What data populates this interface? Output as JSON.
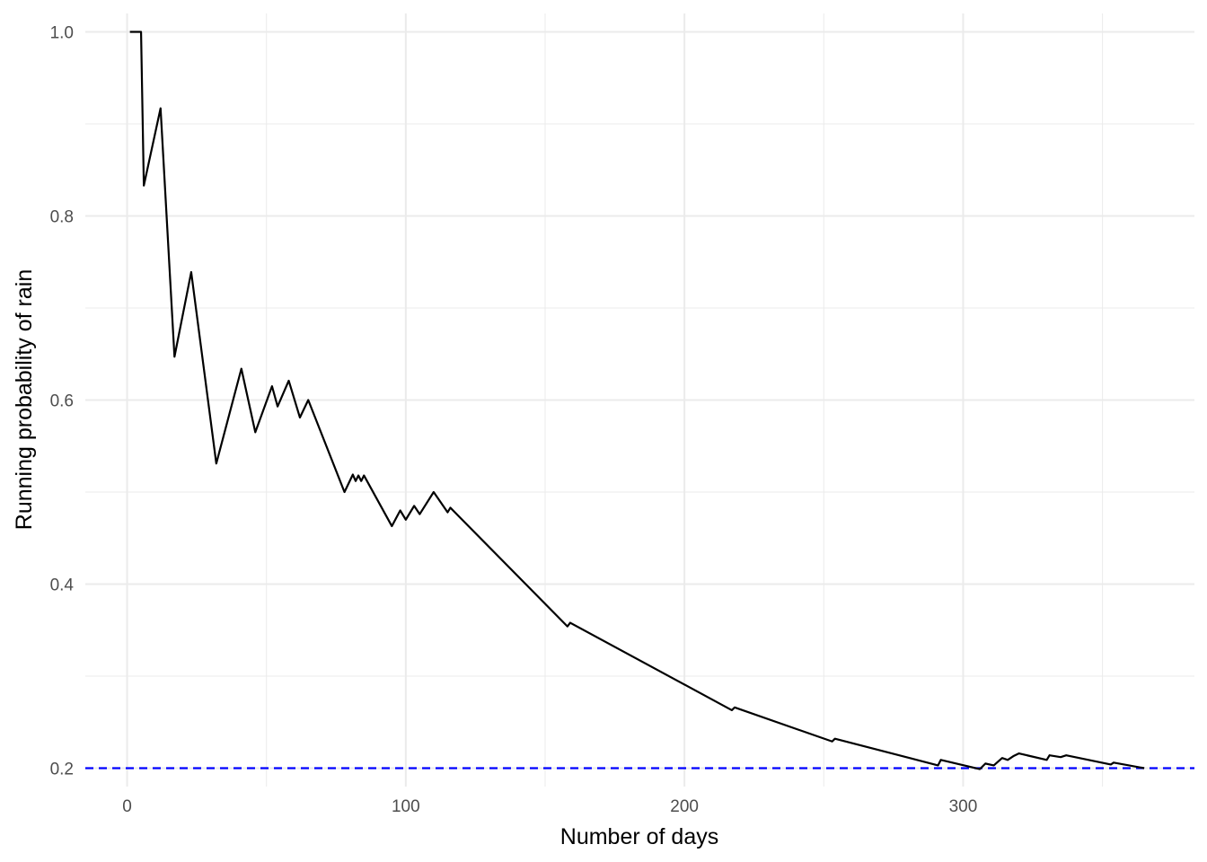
{
  "chart_data": {
    "type": "line",
    "title": "",
    "xlabel": "Number of days",
    "ylabel": "Running probability of rain",
    "xlim": [
      -15,
      383
    ],
    "ylim": [
      0.18,
      1.02
    ],
    "x_ticks": [
      0,
      100,
      200,
      300
    ],
    "x_tick_labels": [
      "0",
      "100",
      "200",
      "300"
    ],
    "x_minor": [
      50,
      150,
      250,
      350
    ],
    "y_ticks": [
      0.2,
      0.4,
      0.6,
      0.8,
      1.0
    ],
    "y_tick_labels": [
      "0.2",
      "0.4",
      "0.6",
      "0.8",
      "1.0"
    ],
    "y_minor": [
      0.3,
      0.5,
      0.7,
      0.9
    ],
    "grid": true,
    "legend": "none",
    "series": [
      {
        "color": "#000000",
        "x": [
          1,
          5,
          6,
          12,
          17,
          23,
          32,
          41,
          46,
          52,
          54,
          58,
          62,
          65,
          78,
          81,
          82,
          83,
          84,
          85,
          95,
          98,
          100,
          103,
          105,
          110,
          115,
          116,
          158,
          159,
          217,
          218,
          253,
          254,
          291,
          292,
          306,
          308,
          311,
          314,
          316,
          318,
          320,
          330,
          331,
          335,
          337,
          353,
          354,
          365
        ],
        "y": [
          1.0,
          1.0,
          0.833,
          0.917,
          0.647,
          0.739,
          0.531,
          0.634,
          0.565,
          0.615,
          0.593,
          0.621,
          0.581,
          0.6,
          0.5,
          0.519,
          0.512,
          0.518,
          0.512,
          0.518,
          0.463,
          0.48,
          0.47,
          0.485,
          0.476,
          0.5,
          0.478,
          0.483,
          0.354,
          0.358,
          0.263,
          0.266,
          0.229,
          0.232,
          0.203,
          0.209,
          0.199,
          0.205,
          0.203,
          0.211,
          0.209,
          0.213,
          0.216,
          0.209,
          0.214,
          0.212,
          0.214,
          0.204,
          0.206,
          0.2
        ]
      }
    ],
    "reference_line": {
      "y": 0.2,
      "color": "#0000ff",
      "style": "dashed"
    }
  }
}
